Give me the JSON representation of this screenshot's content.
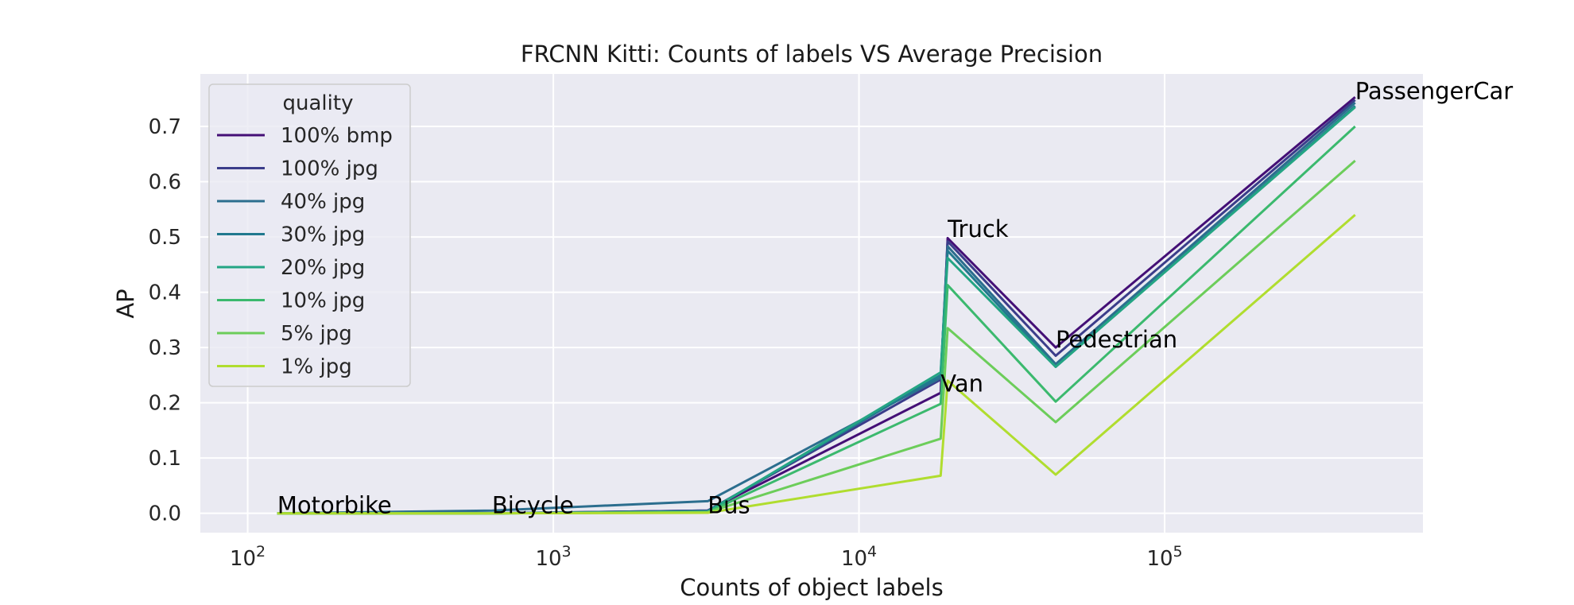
{
  "chart_data": {
    "type": "line",
    "title": "FRCNN Kitti: Counts of labels VS Average Precision",
    "xlabel": "Counts of object labels",
    "ylabel": "AP",
    "x_scale": "log",
    "xlim": [
      70,
      700000
    ],
    "ylim": [
      -0.035,
      0.795
    ],
    "x_ticks": [
      100,
      1000,
      10000,
      100000
    ],
    "x_tick_labels": [
      {
        "base": "10",
        "exp": "2"
      },
      {
        "base": "10",
        "exp": "3"
      },
      {
        "base": "10",
        "exp": "4"
      },
      {
        "base": "10",
        "exp": "5"
      }
    ],
    "y_ticks": [
      0.0,
      0.1,
      0.2,
      0.3,
      0.4,
      0.5,
      0.6,
      0.7
    ],
    "y_tick_labels": [
      "0.0",
      "0.1",
      "0.2",
      "0.3",
      "0.4",
      "0.5",
      "0.6",
      "0.7"
    ],
    "grid": true,
    "background": "#eaeaf2",
    "legend": {
      "title": "quality",
      "position": "top-left"
    },
    "categories": [
      "Motorbike",
      "Bicycle",
      "Bus",
      "Van",
      "Truck",
      "Pedestrian",
      "PassengerCar"
    ],
    "counts": [
      125,
      630,
      3200,
      18500,
      19500,
      44000,
      420000
    ],
    "point_labels": [
      {
        "text": "Motorbike",
        "x": 125,
        "y": 0.0
      },
      {
        "text": "Bicycle",
        "x": 630,
        "y": 0.0
      },
      {
        "text": "Bus",
        "x": 3200,
        "y": 0.0
      },
      {
        "text": "Van",
        "x": 18500,
        "y": 0.22
      },
      {
        "text": "Truck",
        "x": 19500,
        "y": 0.5
      },
      {
        "text": "Pedestrian",
        "x": 44000,
        "y": 0.3
      },
      {
        "text": "PassengerCar",
        "x": 420000,
        "y": 0.75
      }
    ],
    "series": [
      {
        "name": "100% bmp",
        "color": "#440f76",
        "values": [
          0.0,
          0.0,
          0.005,
          0.218,
          0.498,
          0.3,
          0.753
        ]
      },
      {
        "name": "100% jpg",
        "color": "#3b3d8a",
        "values": [
          0.0,
          0.0,
          0.005,
          0.242,
          0.492,
          0.285,
          0.748
        ]
      },
      {
        "name": "40% jpg",
        "color": "#2c6e8e",
        "values": [
          0.0,
          0.005,
          0.022,
          0.245,
          0.483,
          0.27,
          0.743
        ]
      },
      {
        "name": "30% jpg",
        "color": "#21798e",
        "values": [
          0.0,
          0.0,
          0.004,
          0.25,
          0.475,
          0.265,
          0.737
        ]
      },
      {
        "name": "20% jpg",
        "color": "#24a584",
        "values": [
          0.0,
          0.0,
          0.003,
          0.255,
          0.462,
          0.265,
          0.735
        ]
      },
      {
        "name": "10% jpg",
        "color": "#3bb96e",
        "values": [
          0.0,
          0.0,
          0.002,
          0.198,
          0.413,
          0.202,
          0.7
        ]
      },
      {
        "name": "5% jpg",
        "color": "#6ccd5a",
        "values": [
          0.0,
          0.0,
          0.002,
          0.135,
          0.335,
          0.165,
          0.638
        ]
      },
      {
        "name": "1% jpg",
        "color": "#b0dd2f",
        "values": [
          0.0,
          0.0,
          0.001,
          0.068,
          0.24,
          0.07,
          0.54
        ]
      }
    ]
  }
}
